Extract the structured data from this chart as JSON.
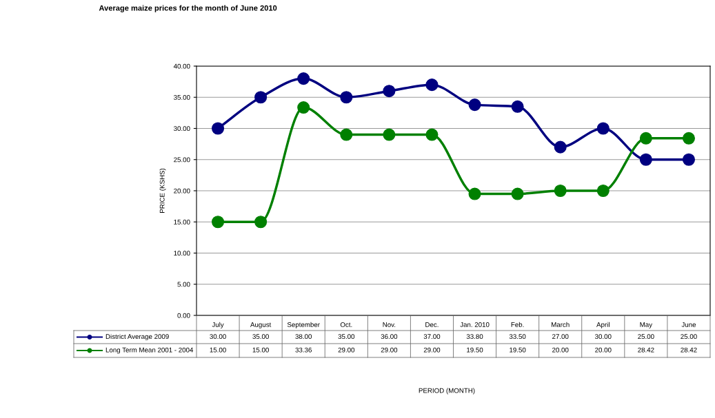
{
  "chart_data": {
    "type": "line",
    "title": "Average maize prices for the month of June 2010",
    "annotations": [
      "PERIOD (MONTH)"
    ],
    "ylabel": "PRICE (KSHS)",
    "categories": [
      "July",
      "August",
      "September",
      "Oct.",
      "Nov.",
      "Dec.",
      "Jan. 2010",
      "Feb.",
      "March",
      "April",
      "May",
      "June"
    ],
    "series": [
      {
        "name": "District Average 2009",
        "color": "#000080",
        "values": [
          30.0,
          35.0,
          38.0,
          35.0,
          36.0,
          37.0,
          33.8,
          33.5,
          27.0,
          30.0,
          25.0,
          25.0
        ],
        "value_labels": [
          "30.00",
          "35.00",
          "38.00",
          "35.00",
          "36.00",
          "37.00",
          "33.80",
          "33.50",
          "27.00",
          "30.00",
          "25.00",
          "25.00"
        ]
      },
      {
        "name": "Long Term Mean 2001 - 2004",
        "color": "#008000",
        "values": [
          15.0,
          15.0,
          33.36,
          29.0,
          29.0,
          29.0,
          19.5,
          19.5,
          20.0,
          20.0,
          28.42,
          28.42
        ],
        "value_labels": [
          "15.00",
          "15.00",
          "33.36",
          "29.00",
          "29.00",
          "29.00",
          "19.50",
          "19.50",
          "20.00",
          "20.00",
          "28.42",
          "28.42"
        ]
      }
    ],
    "ylim": [
      0,
      40
    ],
    "yticks": [
      {
        "value": 0,
        "label": "0.00"
      },
      {
        "value": 5,
        "label": "5.00"
      },
      {
        "value": 10,
        "label": "10.00"
      },
      {
        "value": 15,
        "label": "15.00"
      },
      {
        "value": 20,
        "label": "20.00"
      },
      {
        "value": 25,
        "label": "25.00"
      },
      {
        "value": 30,
        "label": "30.00"
      },
      {
        "value": 35,
        "label": "35.00"
      },
      {
        "value": 40,
        "label": "40.00"
      }
    ],
    "grid": "y",
    "legend": "bottom",
    "marker": "circle",
    "line_style": "solid"
  }
}
